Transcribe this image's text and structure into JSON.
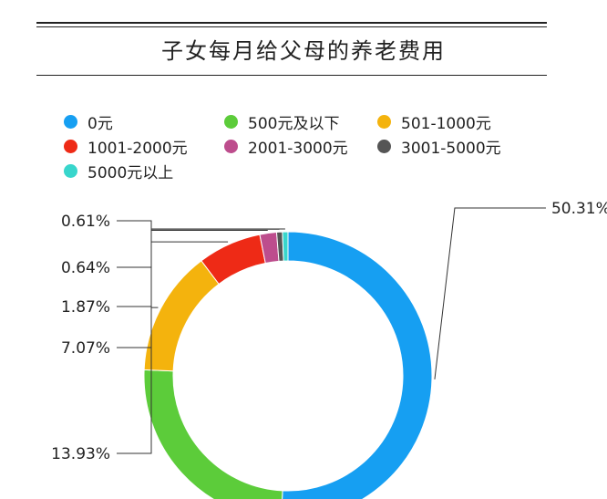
{
  "chart_data": {
    "type": "pie",
    "style": "donut",
    "title": "子女每月给父母的养老费用",
    "legend_placement": "top",
    "slices": [
      {
        "label": "0元",
        "value": 50.31,
        "display": "50.31%",
        "color": "#169ff2"
      },
      {
        "label": "500元及以下",
        "value": 24.69,
        "display": "",
        "color": "#5ccc3a"
      },
      {
        "label": "501-1000元",
        "value": 13.93,
        "display": "13.93%",
        "color": "#f4b30d"
      },
      {
        "label": "1001-2000元",
        "value": 7.07,
        "display": "7.07%",
        "color": "#ee2a16"
      },
      {
        "label": "2001-3000元",
        "value": 1.87,
        "display": "1.87%",
        "color": "#bd4d8d"
      },
      {
        "label": "3001-5000元",
        "value": 0.64,
        "display": "0.64%",
        "color": "#555555"
      },
      {
        "label": "5000元以上",
        "value": 0.61,
        "display": "0.61%",
        "color": "#38d6cc"
      }
    ]
  }
}
